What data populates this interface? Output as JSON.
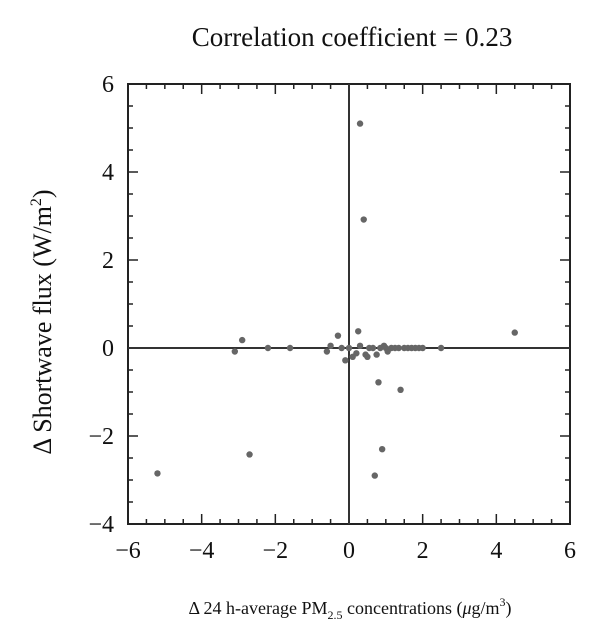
{
  "chart_data": {
    "type": "scatter",
    "title": "Correlation coefficient = 0.23",
    "xlabel_parts": {
      "prefix": "Δ 24 h-average PM",
      "sub": "2.5",
      "mid": " concentrations (",
      "mu": "μ",
      "unit": "g/m",
      "sup": "3",
      "suffix": ")"
    },
    "ylabel_parts": {
      "prefix": "Δ Shortwave flux (W/m",
      "sup": "2",
      "suffix": ")"
    },
    "xlim": [
      -6,
      6
    ],
    "ylim": [
      -4,
      6
    ],
    "xticks": [
      -6,
      -4,
      -2,
      0,
      2,
      4,
      6
    ],
    "yticks": [
      -4,
      -2,
      0,
      2,
      4,
      6
    ],
    "xtick_labels": [
      "−6",
      "−4",
      "−2",
      "0",
      "2",
      "4",
      "6"
    ],
    "ytick_labels": [
      "−4",
      "−2",
      "0",
      "2",
      "4",
      "6"
    ],
    "zero_lines": true,
    "grid": false,
    "marker_color": "#666666",
    "points": [
      {
        "x": -5.2,
        "y": -2.85
      },
      {
        "x": -2.7,
        "y": -2.42
      },
      {
        "x": -3.1,
        "y": -0.08
      },
      {
        "x": -2.9,
        "y": 0.18
      },
      {
        "x": -2.2,
        "y": 0.0
      },
      {
        "x": -1.6,
        "y": 0.0
      },
      {
        "x": -0.6,
        "y": -0.08
      },
      {
        "x": -0.5,
        "y": 0.05
      },
      {
        "x": -0.3,
        "y": 0.28
      },
      {
        "x": -0.2,
        "y": 0.0
      },
      {
        "x": -0.1,
        "y": -0.28
      },
      {
        "x": 0.0,
        "y": 0.0
      },
      {
        "x": 0.1,
        "y": -0.2
      },
      {
        "x": 0.2,
        "y": -0.12
      },
      {
        "x": 0.25,
        "y": 0.38
      },
      {
        "x": 0.3,
        "y": 5.1
      },
      {
        "x": 0.3,
        "y": 0.05
      },
      {
        "x": 0.4,
        "y": 2.92
      },
      {
        "x": 0.45,
        "y": -0.15
      },
      {
        "x": 0.5,
        "y": -0.2
      },
      {
        "x": 0.55,
        "y": 0.0
      },
      {
        "x": 0.65,
        "y": 0.0
      },
      {
        "x": 0.7,
        "y": -2.9
      },
      {
        "x": 0.75,
        "y": -0.15
      },
      {
        "x": 0.8,
        "y": -0.78
      },
      {
        "x": 0.85,
        "y": 0.0
      },
      {
        "x": 0.9,
        "y": -2.3
      },
      {
        "x": 0.95,
        "y": 0.05
      },
      {
        "x": 1.0,
        "y": 0.0
      },
      {
        "x": 1.05,
        "y": -0.08
      },
      {
        "x": 1.15,
        "y": 0.0
      },
      {
        "x": 1.25,
        "y": 0.0
      },
      {
        "x": 1.35,
        "y": 0.0
      },
      {
        "x": 1.4,
        "y": -0.95
      },
      {
        "x": 1.5,
        "y": 0.0
      },
      {
        "x": 1.6,
        "y": 0.0
      },
      {
        "x": 1.7,
        "y": 0.0
      },
      {
        "x": 1.8,
        "y": 0.0
      },
      {
        "x": 1.9,
        "y": 0.0
      },
      {
        "x": 2.0,
        "y": 0.0
      },
      {
        "x": 2.5,
        "y": 0.0
      },
      {
        "x": 4.5,
        "y": 0.35
      }
    ]
  }
}
